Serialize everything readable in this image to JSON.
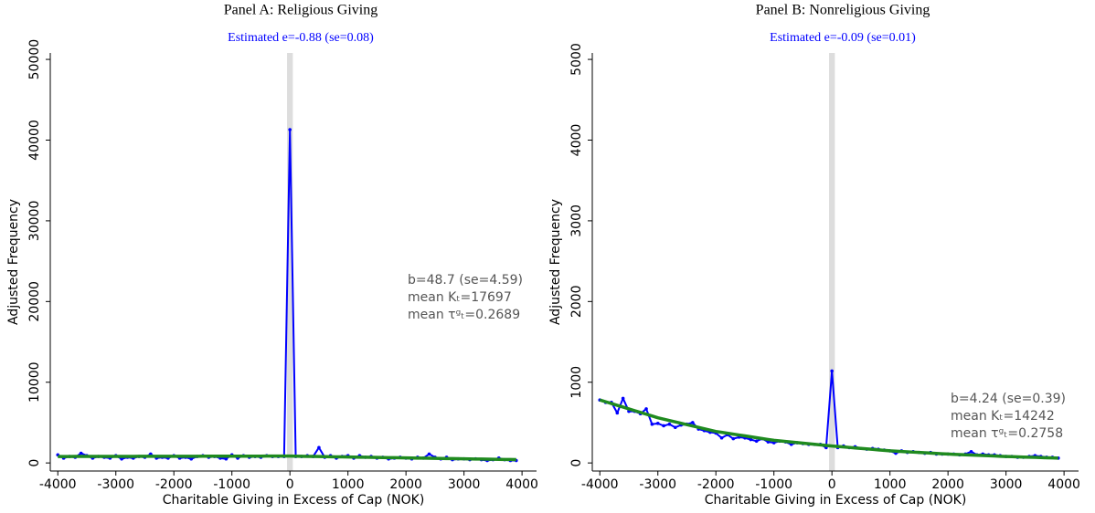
{
  "chart_data": [
    {
      "type": "line",
      "title": "Panel A: Religious Giving",
      "subtitle": "Estimated e=-0.88 (se=0.08)",
      "x_label": "Charitable Giving in Excess of Cap (NOK)",
      "y_label": "Adjusted Frequency",
      "x": [
        -4000,
        -3900,
        -3800,
        -3700,
        -3600,
        -3500,
        -3400,
        -3300,
        -3200,
        -3100,
        -3000,
        -2900,
        -2800,
        -2700,
        -2600,
        -2500,
        -2400,
        -2300,
        -2200,
        -2100,
        -2000,
        -1900,
        -1800,
        -1700,
        -1600,
        -1500,
        -1400,
        -1300,
        -1200,
        -1100,
        -1000,
        -900,
        -800,
        -700,
        -600,
        -500,
        -400,
        -300,
        -200,
        -100,
        0,
        100,
        200,
        300,
        400,
        500,
        600,
        700,
        800,
        900,
        1000,
        1100,
        1200,
        1300,
        1400,
        1500,
        1600,
        1700,
        1800,
        1900,
        2000,
        2100,
        2200,
        2300,
        2400,
        2500,
        2600,
        2700,
        2800,
        2900,
        3000,
        3100,
        3200,
        3300,
        3400,
        3500,
        3600,
        3700,
        3800,
        3900
      ],
      "series": [
        {
          "color": "#0000ff",
          "markers": true,
          "values": [
            1000,
            600,
            800,
            700,
            1200,
            900,
            600,
            800,
            700,
            600,
            900,
            500,
            700,
            600,
            800,
            700,
            1100,
            600,
            700,
            600,
            900,
            600,
            700,
            500,
            800,
            900,
            700,
            800,
            600,
            500,
            1000,
            600,
            900,
            700,
            800,
            700,
            900,
            800,
            800,
            800,
            41300,
            800,
            800,
            900,
            800,
            1900,
            700,
            900,
            600,
            800,
            900,
            600,
            900,
            700,
            800,
            600,
            700,
            500,
            600,
            700,
            600,
            500,
            700,
            600,
            1100,
            700,
            500,
            700,
            400,
            500,
            500,
            400,
            500,
            400,
            300,
            400,
            600,
            400,
            300,
            300
          ]
        },
        {
          "color": "#1f8a1f",
          "markers": false,
          "values": [
            800,
            801,
            802,
            804,
            805,
            806,
            807,
            809,
            810,
            811,
            812,
            814,
            815,
            816,
            817,
            819,
            820,
            821,
            822,
            824,
            825,
            826,
            827,
            829,
            830,
            831,
            832,
            834,
            835,
            836,
            837,
            839,
            840,
            841,
            842,
            844,
            845,
            846,
            847,
            849,
            850,
            839,
            828,
            816,
            805,
            794,
            783,
            771,
            760,
            749,
            738,
            726,
            715,
            704,
            693,
            681,
            670,
            659,
            648,
            636,
            625,
            614,
            603,
            591,
            580,
            569,
            558,
            546,
            535,
            524,
            513,
            501,
            490,
            479,
            468,
            456,
            445,
            434,
            423,
            411
          ]
        }
      ],
      "shade_x": [
        -50,
        50
      ],
      "shade_color": "#dddddd",
      "xlim": [
        -4130,
        4250
      ],
      "xticks": [
        -4000,
        -3000,
        -2000,
        -1000,
        0,
        1000,
        2000,
        3000,
        4000
      ],
      "ylim": [
        -1000,
        50800
      ],
      "yticks": [
        0,
        10000,
        20000,
        30000,
        40000,
        50000
      ],
      "grid": false,
      "annotations": [
        "b=48.7 (se=4.59)",
        "mean Kₜ=17697",
        "mean τᵍₜ=0.2689"
      ]
    },
    {
      "type": "line",
      "title": "Panel B: Nonreligious Giving",
      "subtitle": "Estimated e=-0.09 (se=0.01)",
      "x_label": "Charitable Giving in Excess of Cap (NOK)",
      "y_label": "Adjusted Frequency",
      "x": [
        -4000,
        -3900,
        -3800,
        -3700,
        -3600,
        -3500,
        -3400,
        -3300,
        -3200,
        -3100,
        -3000,
        -2900,
        -2800,
        -2700,
        -2600,
        -2500,
        -2400,
        -2300,
        -2200,
        -2100,
        -2000,
        -1900,
        -1800,
        -1700,
        -1600,
        -1500,
        -1400,
        -1300,
        -1200,
        -1100,
        -1000,
        -900,
        -800,
        -700,
        -600,
        -500,
        -400,
        -300,
        -200,
        -100,
        0,
        100,
        200,
        300,
        400,
        500,
        600,
        700,
        800,
        900,
        1000,
        1100,
        1200,
        1300,
        1400,
        1500,
        1600,
        1700,
        1800,
        1900,
        2000,
        2100,
        2200,
        2300,
        2400,
        2500,
        2600,
        2700,
        2800,
        2900,
        3000,
        3100,
        3200,
        3300,
        3400,
        3500,
        3600,
        3700,
        3800,
        3900
      ],
      "series": [
        {
          "color": "#0000ff",
          "markers": true,
          "values": [
            780,
            750,
            750,
            620,
            800,
            640,
            640,
            610,
            670,
            480,
            490,
            460,
            480,
            440,
            470,
            480,
            500,
            420,
            400,
            380,
            370,
            310,
            350,
            300,
            320,
            310,
            290,
            270,
            300,
            260,
            250,
            270,
            260,
            230,
            250,
            240,
            230,
            230,
            230,
            190,
            1140,
            190,
            210,
            190,
            200,
            180,
            170,
            180,
            170,
            160,
            150,
            120,
            150,
            130,
            140,
            130,
            120,
            130,
            110,
            110,
            110,
            110,
            100,
            110,
            140,
            100,
            110,
            100,
            100,
            90,
            80,
            80,
            70,
            70,
            80,
            90,
            80,
            70,
            70,
            60
          ]
        },
        {
          "color": "#1f8a1f",
          "markers": false,
          "values": [
            780,
            758,
            736,
            714,
            692,
            670,
            648,
            626,
            604,
            582,
            560,
            543,
            526,
            509,
            492,
            475,
            458,
            441,
            424,
            407,
            390,
            379,
            368,
            357,
            346,
            335,
            324,
            313,
            302,
            291,
            280,
            273,
            266,
            259,
            252,
            245,
            238,
            231,
            224,
            217,
            210,
            204,
            198,
            192,
            186,
            180,
            174,
            168,
            162,
            156,
            150,
            146,
            142,
            138,
            134,
            130,
            126,
            122,
            118,
            114,
            110,
            107,
            104,
            101,
            98,
            95,
            92,
            89,
            86,
            83,
            80,
            78,
            76,
            73,
            71,
            69,
            67,
            64,
            62,
            60
          ]
        }
      ],
      "shade_x": [
        -50,
        50
      ],
      "shade_color": "#dddddd",
      "xlim": [
        -4130,
        4250
      ],
      "xticks": [
        -4000,
        -3000,
        -2000,
        -1000,
        0,
        1000,
        2000,
        3000,
        4000
      ],
      "ylim": [
        -100,
        5080
      ],
      "yticks": [
        0,
        1000,
        2000,
        3000,
        4000,
        5000
      ],
      "grid": false,
      "annotations": [
        "b=4.24 (se=0.39)",
        "mean Kₜ=14242",
        "mean τᵍₜ=0.2758"
      ]
    }
  ]
}
